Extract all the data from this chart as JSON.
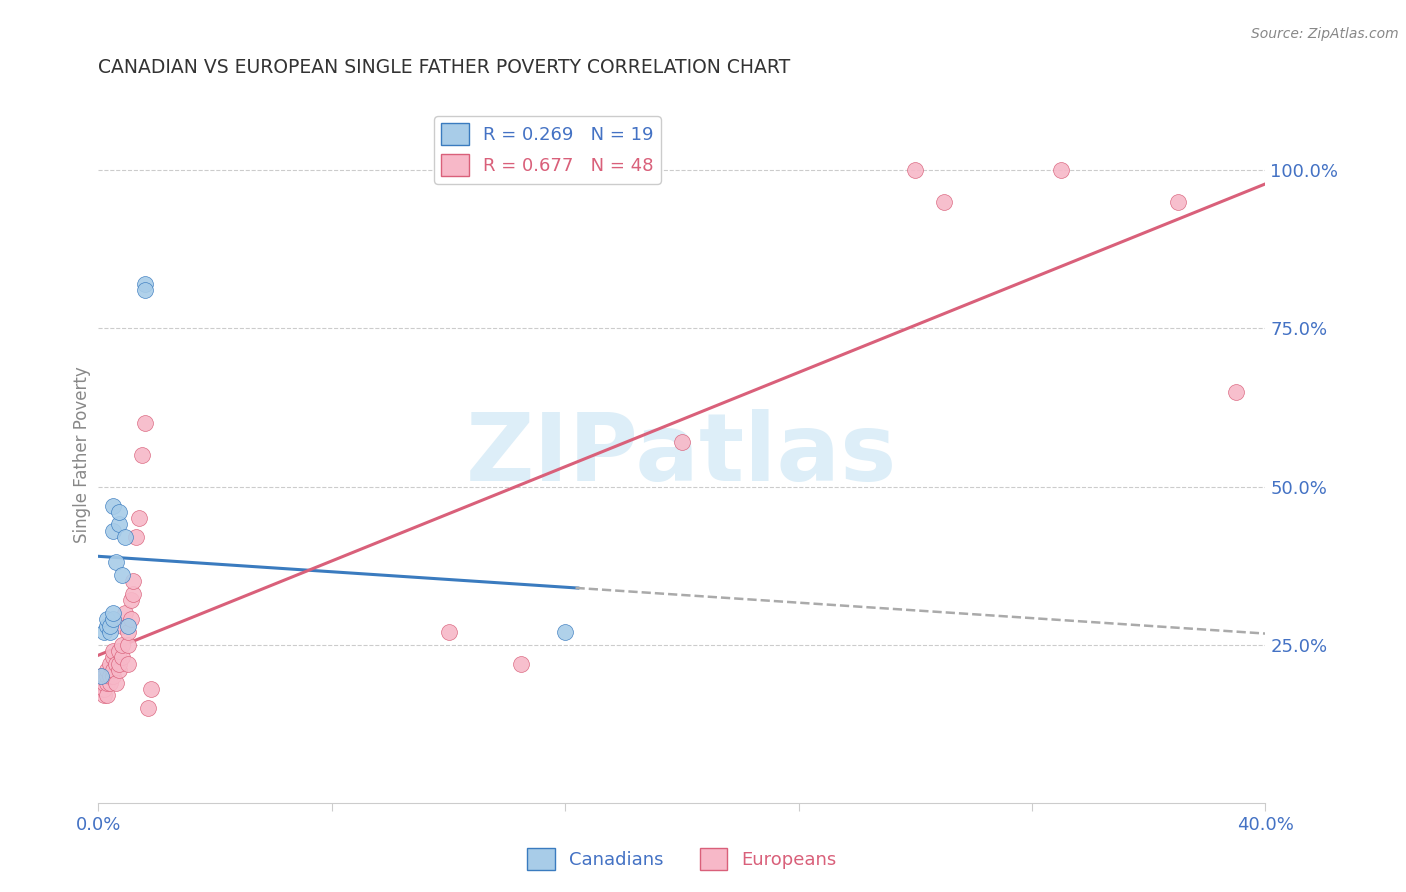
{
  "title": "CANADIAN VS EUROPEAN SINGLE FATHER POVERTY CORRELATION CHART",
  "source": "Source: ZipAtlas.com",
  "ylabel": "Single Father Poverty",
  "right_yticks": [
    "100.0%",
    "75.0%",
    "50.0%",
    "25.0%"
  ],
  "right_ytick_vals": [
    1.0,
    0.75,
    0.5,
    0.25
  ],
  "R_blue": 0.269,
  "N_blue": 19,
  "R_pink": 0.677,
  "N_pink": 48,
  "blue_color": "#a8cce8",
  "pink_color": "#f7b8c8",
  "blue_line_color": "#3a7bbf",
  "pink_line_color": "#d9607a",
  "blue_edge_color": "#3a7bbf",
  "pink_edge_color": "#d9607a",
  "watermark_color": "#ddeef8",
  "canadians_x": [
    0.001,
    0.002,
    0.003,
    0.003,
    0.004,
    0.004,
    0.005,
    0.005,
    0.005,
    0.005,
    0.006,
    0.007,
    0.007,
    0.008,
    0.009,
    0.01,
    0.016,
    0.016,
    0.16
  ],
  "canadians_y": [
    0.2,
    0.27,
    0.28,
    0.29,
    0.27,
    0.28,
    0.29,
    0.3,
    0.43,
    0.47,
    0.38,
    0.44,
    0.46,
    0.36,
    0.42,
    0.28,
    0.82,
    0.81,
    0.27
  ],
  "europeans_x": [
    0.001,
    0.001,
    0.001,
    0.002,
    0.002,
    0.002,
    0.002,
    0.003,
    0.003,
    0.003,
    0.003,
    0.004,
    0.004,
    0.004,
    0.005,
    0.005,
    0.005,
    0.005,
    0.006,
    0.006,
    0.007,
    0.007,
    0.007,
    0.008,
    0.008,
    0.008,
    0.009,
    0.01,
    0.01,
    0.01,
    0.011,
    0.011,
    0.012,
    0.012,
    0.013,
    0.014,
    0.015,
    0.016,
    0.017,
    0.018,
    0.12,
    0.145,
    0.2,
    0.28,
    0.29,
    0.33,
    0.37,
    0.39
  ],
  "europeans_y": [
    0.18,
    0.19,
    0.2,
    0.17,
    0.18,
    0.19,
    0.2,
    0.17,
    0.19,
    0.2,
    0.21,
    0.19,
    0.2,
    0.22,
    0.2,
    0.21,
    0.23,
    0.24,
    0.19,
    0.22,
    0.21,
    0.22,
    0.24,
    0.23,
    0.25,
    0.28,
    0.3,
    0.22,
    0.25,
    0.27,
    0.29,
    0.32,
    0.33,
    0.35,
    0.42,
    0.45,
    0.55,
    0.6,
    0.15,
    0.18,
    0.27,
    0.22,
    0.57,
    1.0,
    0.95,
    1.0,
    0.95,
    0.65
  ],
  "xlim": [
    0.0,
    0.4
  ],
  "ylim": [
    0.0,
    1.1
  ],
  "blue_line_x_solid_end": 0.17,
  "blue_line_x_start": 0.0,
  "blue_line_x_end": 0.4
}
